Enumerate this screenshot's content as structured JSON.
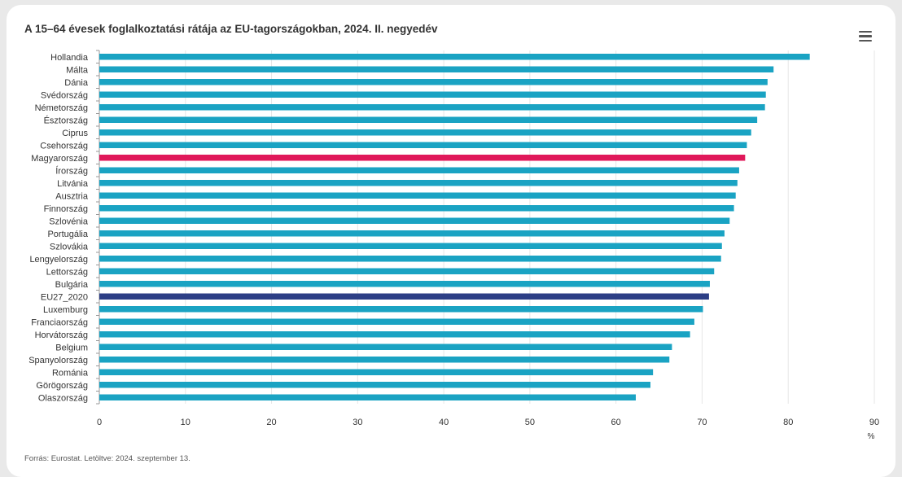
{
  "chart_data": {
    "type": "bar",
    "orientation": "horizontal",
    "title": "A 15–64 évesek foglalkoztatási rátája az EU-tagországokban, 2024. II. negyedév",
    "categories": [
      "Hollandia",
      "Málta",
      "Dánia",
      "Svédország",
      "Németország",
      "Észtország",
      "Ciprus",
      "Csehország",
      "Magyarország",
      "Írország",
      "Litvánia",
      "Ausztria",
      "Finnország",
      "Szlovénia",
      "Portugália",
      "Szlovákia",
      "Lengyelország",
      "Lettország",
      "Bulgária",
      "EU27_2020",
      "Luxemburg",
      "Franciaország",
      "Horvátország",
      "Belgium",
      "Spanyolország",
      "Románia",
      "Görögország",
      "Olaszország"
    ],
    "values": [
      82.5,
      78.3,
      77.6,
      77.4,
      77.3,
      76.4,
      75.7,
      75.2,
      75.0,
      74.3,
      74.1,
      73.9,
      73.7,
      73.2,
      72.6,
      72.3,
      72.2,
      71.4,
      70.9,
      70.8,
      70.1,
      69.1,
      68.6,
      66.5,
      66.2,
      64.3,
      64.0,
      62.3
    ],
    "xlim": [
      0,
      90
    ],
    "xticks": [
      0,
      10,
      20,
      30,
      40,
      50,
      60,
      70,
      80,
      90
    ],
    "xunit": "%",
    "grid": true,
    "colors": {
      "default": "#1aa3c3",
      "Magyarország": "#e0185a",
      "EU27_2020": "#2c3e85",
      "grid": "#e6e6e6",
      "axis": "#999999"
    }
  },
  "source_note": "Forrás: Eurostat. Letöltve: 2024. szeptember 13.",
  "menu_icon": "hamburger-menu-icon"
}
